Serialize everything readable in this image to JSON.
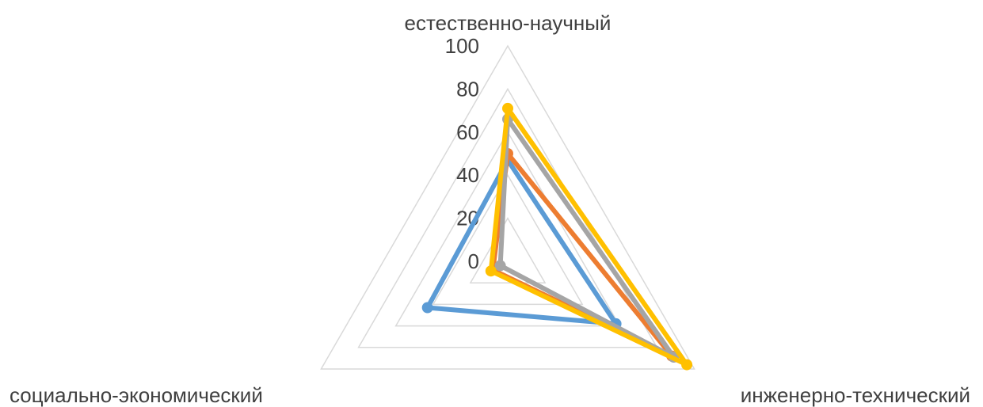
{
  "chart_data": {
    "type": "radar",
    "categories": [
      "естественно-научный",
      "инженерно-технический",
      "социально-экономический"
    ],
    "radial_ticks": [
      "0",
      "20",
      "40",
      "60",
      "80",
      "100"
    ],
    "rlim": [
      0,
      100
    ],
    "grid": true,
    "series": [
      {
        "values": [
          47,
          58,
          43
        ],
        "color": "#5B9BD5"
      },
      {
        "values": [
          50,
          88,
          8
        ],
        "color": "#ED7D31"
      },
      {
        "values": [
          66,
          89,
          4
        ],
        "color": "#A5A5A5"
      },
      {
        "values": [
          71,
          96,
          9
        ],
        "color": "#FFC000"
      }
    ]
  }
}
